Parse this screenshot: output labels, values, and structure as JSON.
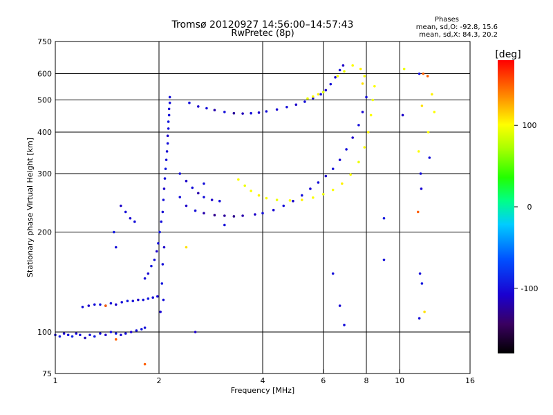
{
  "chart_data": {
    "type": "scatter",
    "title": "Tromsø 20120927 14:56:00–14:57:43",
    "subtitle": "RwPretec (8p)",
    "phase_box": {
      "title": "Phases",
      "line_o": "mean, sd,O: -92.8, 15.6",
      "line_x": "mean, sd,X:  84.3, 20.2"
    },
    "xlabel": "Frequency [MHz]",
    "ylabel": "Stationary phase Virtual Height [km]",
    "xscale": "log",
    "yscale": "log",
    "xlim": [
      1,
      16
    ],
    "ylim": [
      75,
      750
    ],
    "xticks": [
      {
        "v": 1,
        "label": "1"
      },
      {
        "v": 2,
        "label": "2"
      },
      {
        "v": 4,
        "label": "4"
      },
      {
        "v": 6,
        "label": "6"
      },
      {
        "v": 8,
        "label": "8"
      },
      {
        "v": 10,
        "label": "10"
      },
      {
        "v": 16,
        "label": "16"
      }
    ],
    "yticks": [
      {
        "v": 75,
        "label": "75"
      },
      {
        "v": 100,
        "label": "100"
      },
      {
        "v": 200,
        "label": "200"
      },
      {
        "v": 300,
        "label": "300"
      },
      {
        "v": 400,
        "label": "400"
      },
      {
        "v": 500,
        "label": "500"
      },
      {
        "v": 600,
        "label": "600"
      },
      {
        "v": 750,
        "label": "750"
      }
    ],
    "xgrid": [
      2,
      4,
      6,
      8,
      10
    ],
    "ygrid": [
      100,
      200,
      300,
      400,
      500,
      600
    ],
    "colorbar": {
      "label": "[deg]",
      "range": [
        -180,
        180
      ],
      "ticks": [
        {
          "v": 100,
          "label": "100"
        },
        {
          "v": 0,
          "label": "0"
        },
        {
          "v": -100,
          "label": "-100"
        }
      ]
    },
    "series": [
      {
        "values": [
          [
            1.0,
            98,
            -100
          ],
          [
            1.03,
            97,
            -95
          ],
          [
            1.06,
            99,
            -110
          ],
          [
            1.09,
            98,
            -100
          ],
          [
            1.12,
            97,
            -90
          ],
          [
            1.15,
            99,
            -105
          ],
          [
            1.18,
            98,
            -100
          ],
          [
            1.22,
            96,
            -115
          ],
          [
            1.26,
            98,
            -100
          ],
          [
            1.3,
            97,
            -95
          ],
          [
            1.35,
            99,
            -100
          ],
          [
            1.4,
            98,
            -110
          ],
          [
            1.45,
            100,
            -100
          ],
          [
            1.5,
            99,
            -95
          ],
          [
            1.55,
            98,
            -105
          ],
          [
            1.6,
            99,
            -100
          ],
          [
            1.66,
            100,
            -110
          ],
          [
            1.72,
            101,
            -100
          ],
          [
            1.78,
            102,
            -95
          ],
          [
            1.82,
            103,
            -100
          ]
        ]
      },
      {
        "values": [
          [
            1.2,
            119,
            -100
          ],
          [
            1.25,
            120,
            -110
          ],
          [
            1.3,
            121,
            -100
          ],
          [
            1.35,
            121,
            -95
          ],
          [
            1.4,
            120,
            -105
          ],
          [
            1.45,
            122,
            -100
          ],
          [
            1.5,
            121,
            -110
          ],
          [
            1.56,
            123,
            -100
          ],
          [
            1.62,
            124,
            -95
          ],
          [
            1.68,
            124,
            -100
          ],
          [
            1.74,
            125,
            -110
          ],
          [
            1.8,
            125,
            -100
          ],
          [
            1.86,
            126,
            -95
          ],
          [
            1.92,
            127,
            -100
          ],
          [
            1.98,
            128,
            -105
          ]
        ]
      },
      {
        "values": [
          [
            1.82,
            145,
            -100
          ],
          [
            1.86,
            150,
            -105
          ],
          [
            1.9,
            158,
            -95
          ],
          [
            1.94,
            165,
            -100
          ],
          [
            1.97,
            175,
            -110
          ],
          [
            1.99,
            185,
            -100
          ],
          [
            2.01,
            200,
            -95
          ],
          [
            2.03,
            215,
            -100
          ],
          [
            2.05,
            230,
            -105
          ],
          [
            2.06,
            250,
            -100
          ],
          [
            2.07,
            270,
            -110
          ],
          [
            2.08,
            290,
            -100
          ],
          [
            2.09,
            310,
            -95
          ],
          [
            2.1,
            330,
            -100
          ],
          [
            2.11,
            350,
            -105
          ],
          [
            2.12,
            370,
            -100
          ],
          [
            2.12,
            390,
            -110
          ],
          [
            2.13,
            410,
            -100
          ],
          [
            2.13,
            430,
            -95
          ],
          [
            2.14,
            450,
            -100
          ],
          [
            2.14,
            470,
            -105
          ],
          [
            2.15,
            490,
            -100
          ],
          [
            2.15,
            510,
            -100
          ],
          [
            2.04,
            140,
            -95
          ],
          [
            2.06,
            125,
            -100
          ],
          [
            2.02,
            115,
            -105
          ],
          [
            2.05,
            160,
            -100
          ],
          [
            2.07,
            180,
            -110
          ]
        ]
      },
      {
        "values": [
          [
            2.45,
            490,
            -100
          ],
          [
            2.6,
            478,
            -110
          ],
          [
            2.75,
            472,
            -100
          ],
          [
            2.9,
            466,
            -120
          ],
          [
            3.1,
            460,
            -100
          ],
          [
            3.3,
            456,
            -125
          ],
          [
            3.5,
            455,
            -115
          ],
          [
            3.7,
            456,
            -100
          ],
          [
            3.9,
            458,
            -110
          ],
          [
            4.1,
            462,
            -100
          ],
          [
            4.4,
            468,
            -105
          ],
          [
            4.7,
            476,
            -100
          ],
          [
            5.0,
            484,
            -110
          ],
          [
            5.3,
            494,
            -100
          ],
          [
            5.6,
            506,
            -105
          ],
          [
            5.9,
            520,
            -100
          ],
          [
            6.1,
            535,
            -110
          ],
          [
            6.3,
            558,
            -100
          ],
          [
            6.5,
            585,
            -105
          ],
          [
            6.7,
            615,
            -100
          ],
          [
            6.85,
            635,
            -110
          ]
        ]
      },
      {
        "values": [
          [
            5.4,
            505,
            95
          ],
          [
            5.6,
            512,
            100
          ],
          [
            5.8,
            520,
            105
          ],
          [
            6.0,
            528,
            90
          ],
          [
            6.6,
            590,
            100
          ],
          [
            6.9,
            610,
            95
          ],
          [
            7.3,
            635,
            100
          ],
          [
            7.7,
            620,
            105
          ],
          [
            7.8,
            560,
            110
          ],
          [
            7.9,
            590,
            100
          ]
        ]
      },
      {
        "values": [
          [
            2.3,
            255,
            -100
          ],
          [
            2.4,
            240,
            -110
          ],
          [
            2.55,
            232,
            -100
          ],
          [
            2.7,
            228,
            -120
          ],
          [
            2.9,
            225,
            -130
          ],
          [
            3.1,
            224,
            -125
          ],
          [
            3.3,
            223,
            -130
          ],
          [
            3.5,
            224,
            -120
          ],
          [
            3.8,
            226,
            -110
          ],
          [
            4.0,
            228,
            -100
          ],
          [
            4.3,
            233,
            -105
          ],
          [
            4.6,
            240,
            -100
          ],
          [
            4.9,
            248,
            -110
          ],
          [
            5.2,
            258,
            -100
          ],
          [
            5.5,
            270,
            -105
          ],
          [
            5.8,
            282,
            -100
          ],
          [
            6.1,
            295,
            -110
          ],
          [
            6.4,
            310,
            -100
          ],
          [
            6.7,
            330,
            -105
          ],
          [
            7.0,
            355,
            -100
          ],
          [
            7.3,
            385,
            -110
          ],
          [
            7.6,
            420,
            -100
          ],
          [
            7.8,
            460,
            -105
          ],
          [
            8.0,
            510,
            -100
          ]
        ]
      },
      {
        "values": [
          [
            2.3,
            300,
            -100
          ],
          [
            2.4,
            285,
            -110
          ],
          [
            2.5,
            272,
            -100
          ],
          [
            2.6,
            262,
            -120
          ],
          [
            2.7,
            255,
            -100
          ],
          [
            2.85,
            250,
            -110
          ],
          [
            3.0,
            248,
            -100
          ]
        ]
      },
      {
        "values": [
          [
            3.4,
            288,
            100
          ],
          [
            3.55,
            276,
            95
          ],
          [
            3.7,
            266,
            100
          ],
          [
            3.9,
            258,
            105
          ],
          [
            4.1,
            253,
            100
          ],
          [
            4.4,
            250,
            95
          ],
          [
            4.8,
            249,
            100
          ],
          [
            5.2,
            250,
            105
          ],
          [
            5.6,
            254,
            100
          ],
          [
            6.0,
            260,
            95
          ],
          [
            6.4,
            268,
            100
          ],
          [
            6.8,
            280,
            105
          ],
          [
            7.2,
            298,
            100
          ],
          [
            7.6,
            325,
            95
          ],
          [
            7.9,
            360,
            100
          ],
          [
            8.1,
            400,
            105
          ],
          [
            8.25,
            450,
            100
          ],
          [
            8.35,
            500,
            95
          ],
          [
            8.45,
            550,
            100
          ]
        ]
      },
      {
        "values": [
          [
            6.4,
            150,
            -100
          ],
          [
            6.7,
            120,
            -105
          ],
          [
            6.9,
            105,
            -100
          ],
          [
            9.0,
            220,
            -95
          ],
          [
            9.0,
            165,
            -100
          ],
          [
            10.2,
            450,
            -110
          ],
          [
            10.3,
            620,
            95
          ],
          [
            11.4,
            600,
            -100
          ],
          [
            11.7,
            600,
            150
          ],
          [
            11.6,
            480,
            110
          ],
          [
            11.5,
            300,
            -100
          ],
          [
            11.55,
            270,
            -105
          ],
          [
            11.45,
            150,
            -100
          ],
          [
            11.6,
            140,
            -95
          ],
          [
            11.4,
            110,
            -100
          ],
          [
            11.8,
            115,
            110
          ],
          [
            12.1,
            400,
            100
          ],
          [
            12.4,
            520,
            105
          ],
          [
            12.6,
            460,
            100
          ],
          [
            12.05,
            590,
            150
          ],
          [
            12.2,
            335,
            -100
          ],
          [
            11.3,
            230,
            150
          ],
          [
            11.35,
            350,
            100
          ]
        ]
      },
      {
        "values": [
          [
            1.6,
            230,
            -100
          ],
          [
            1.65,
            220,
            -105
          ],
          [
            1.7,
            215,
            -100
          ],
          [
            1.55,
            240,
            -110
          ],
          [
            1.5,
            180,
            -100
          ],
          [
            1.48,
            200,
            -95
          ],
          [
            1.82,
            80,
            150
          ],
          [
            2.55,
            100,
            -110
          ],
          [
            2.4,
            180,
            110
          ],
          [
            2.7,
            280,
            -100
          ],
          [
            3.1,
            210,
            -100
          ],
          [
            1.4,
            120,
            150
          ],
          [
            1.5,
            95,
            150
          ]
        ]
      }
    ]
  }
}
